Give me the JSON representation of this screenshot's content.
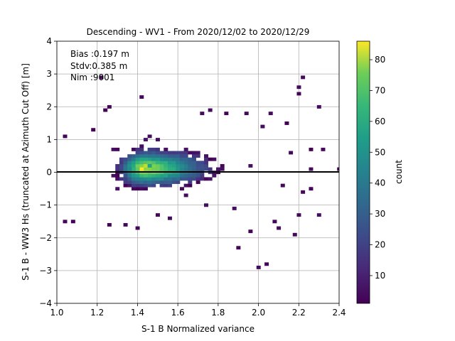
{
  "chart_data": {
    "type": "heatmap",
    "title": "Descending - WV1 - From 2020/12/02 to 2020/12/29",
    "xlabel": "S-1 B Normalized variance",
    "ylabel": "S-1 B - WW3 Hs (truncated at Azimuth Cut Off) [m]",
    "xlim": [
      1.0,
      2.4
    ],
    "ylim": [
      -4,
      4
    ],
    "xticks": [
      "1.0",
      "1.2",
      "1.4",
      "1.6",
      "1.8",
      "2.0",
      "2.2",
      "2.4"
    ],
    "yticks": [
      "−4",
      "−3",
      "−2",
      "−1",
      "0",
      "1",
      "2",
      "3",
      "4"
    ],
    "grid": true,
    "reference_line_y": 0,
    "annotations": [
      "Bias :0.197 m",
      "Stdv:0.385 m",
      "Nim :9001"
    ],
    "colorbar": {
      "label": "count",
      "range": [
        1,
        86
      ],
      "ticks": [
        "10",
        "20",
        "30",
        "40",
        "50",
        "60",
        "70",
        "80"
      ],
      "tick_values": [
        10,
        20,
        30,
        40,
        50,
        60,
        70,
        80
      ],
      "colormap": "viridis"
    },
    "bins": {
      "dx": 0.02,
      "dy": 0.1,
      "core": [
        {
          "x": 1.42,
          "y": 0.15,
          "count": 86
        },
        {
          "x": 1.44,
          "y": 0.18,
          "count": 78
        },
        {
          "x": 1.4,
          "y": 0.1,
          "count": 65
        },
        {
          "x": 1.38,
          "y": 0.12,
          "count": 55
        },
        {
          "x": 1.46,
          "y": 0.22,
          "count": 50
        },
        {
          "x": 1.36,
          "y": 0.05,
          "count": 42
        }
      ],
      "outliers": [
        {
          "x": 1.04,
          "y": 1.1
        },
        {
          "x": 1.18,
          "y": 1.3
        },
        {
          "x": 1.22,
          "y": 2.9
        },
        {
          "x": 1.24,
          "y": 1.9
        },
        {
          "x": 1.26,
          "y": 1.95
        },
        {
          "x": 1.42,
          "y": 2.3
        },
        {
          "x": 1.04,
          "y": -1.55
        },
        {
          "x": 1.08,
          "y": -1.55
        },
        {
          "x": 1.26,
          "y": -1.6
        },
        {
          "x": 1.34,
          "y": -1.6
        },
        {
          "x": 1.4,
          "y": -1.7
        },
        {
          "x": 1.5,
          "y": -1.3
        },
        {
          "x": 1.56,
          "y": -1.45
        },
        {
          "x": 1.74,
          "y": -1.05
        },
        {
          "x": 1.88,
          "y": -1.1
        },
        {
          "x": 1.9,
          "y": -2.3
        },
        {
          "x": 1.96,
          "y": -1.85
        },
        {
          "x": 2.0,
          "y": -2.9
        },
        {
          "x": 2.04,
          "y": -2.85
        },
        {
          "x": 2.08,
          "y": -1.55
        },
        {
          "x": 2.1,
          "y": -1.7
        },
        {
          "x": 2.18,
          "y": -1.9
        },
        {
          "x": 2.2,
          "y": -1.35
        },
        {
          "x": 2.3,
          "y": -1.35
        },
        {
          "x": 2.22,
          "y": 2.85
        },
        {
          "x": 2.2,
          "y": 2.65
        },
        {
          "x": 2.2,
          "y": 2.4
        },
        {
          "x": 2.3,
          "y": 1.95
        },
        {
          "x": 2.06,
          "y": 1.8
        },
        {
          "x": 2.14,
          "y": 1.5
        },
        {
          "x": 2.26,
          "y": 0.7
        },
        {
          "x": 2.32,
          "y": 0.65
        },
        {
          "x": 2.26,
          "y": 0.1
        },
        {
          "x": 2.4,
          "y": 0.05
        },
        {
          "x": 2.12,
          "y": -0.4
        },
        {
          "x": 2.22,
          "y": -0.6
        },
        {
          "x": 2.26,
          "y": -0.55
        },
        {
          "x": 2.16,
          "y": 0.55
        },
        {
          "x": 2.02,
          "y": 1.4
        },
        {
          "x": 1.72,
          "y": 1.75
        },
        {
          "x": 1.76,
          "y": 1.85
        },
        {
          "x": 1.84,
          "y": 1.8
        },
        {
          "x": 1.94,
          "y": 1.75
        }
      ]
    }
  }
}
